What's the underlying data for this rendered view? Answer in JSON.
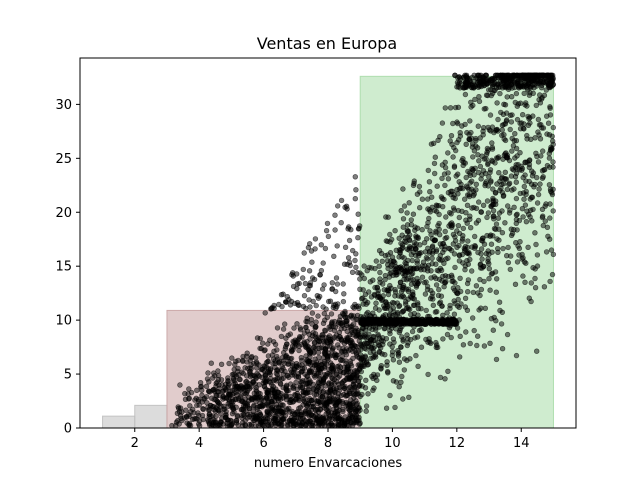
{
  "chart_data": {
    "type": "scatter",
    "title": "Ventas en Europa",
    "xlabel": "numero Envarcaciones",
    "ylabel": "",
    "xlim": [
      0.3,
      15.7
    ],
    "ylim": [
      0,
      34.3
    ],
    "x_ticks": [
      2,
      4,
      6,
      8,
      10,
      12,
      14
    ],
    "y_ticks": [
      0,
      5,
      10,
      15,
      20,
      25,
      30
    ],
    "x_tick_labels": [
      "2",
      "4",
      "6",
      "8",
      "10",
      "12",
      "14"
    ],
    "y_tick_labels": [
      "0",
      "5",
      "10",
      "15",
      "20",
      "25",
      "30"
    ],
    "grid": false,
    "legend": "none",
    "regions": [
      {
        "x0": 1.0,
        "x1": 2.0,
        "y": 1.1,
        "color": "#bfbfbf"
      },
      {
        "x0": 2.0,
        "x1": 3.0,
        "y": 2.1,
        "color": "#bfbfbf"
      },
      {
        "x0": 3.0,
        "x1": 9.0,
        "y": 10.9,
        "color": "#c9a3a3"
      },
      {
        "x0": 9.0,
        "x1": 15.0,
        "y": 32.6,
        "color": "#a8dca8"
      }
    ],
    "scatter_clusters": [
      {
        "xmin": 3.0,
        "xmax": 9.0,
        "ymin": 0.2,
        "ymax": 11.5,
        "mean_x": 7.2,
        "count": 1500
      },
      {
        "xmin": 9.0,
        "xmax": 15.0,
        "ymin": 0.5,
        "ymax": 32.7,
        "mean_x": 11.8,
        "count": 1400
      },
      {
        "xmin": 9.0,
        "xmax": 12.0,
        "ymin": 9.6,
        "ymax": 10.1,
        "mean_x": 10.5,
        "count": 400
      },
      {
        "xmin": 12.0,
        "xmax": 15.0,
        "ymin": 31.5,
        "ymax": 32.6,
        "mean_x": 13.6,
        "count": 250
      },
      {
        "xmin": 6.0,
        "xmax": 9.0,
        "ymin": 11.0,
        "ymax": 26.5,
        "mean_x": 8.3,
        "count": 120
      }
    ],
    "point_color": "#000000",
    "point_alpha": 0.5
  }
}
